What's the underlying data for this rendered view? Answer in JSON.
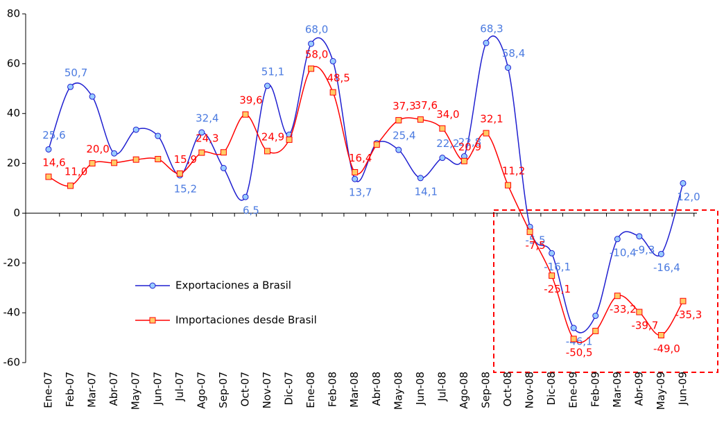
{
  "chart_data": {
    "type": "line",
    "categories": [
      "Ene-07",
      "Feb-07",
      "Mar-07",
      "Abr-07",
      "May-07",
      "Jun-07",
      "Jul-07",
      "Ago-07",
      "Sep-07",
      "Oct-07",
      "Nov-07",
      "Dic-07",
      "Ene-08",
      "Feb-08",
      "Mar-08",
      "Abr-08",
      "May-08",
      "Jun-08",
      "Jul-08",
      "Ago-08",
      "Sep-08",
      "Oct-08",
      "Nov-08",
      "Dic-08",
      "Ene-09",
      "Feb-09",
      "Mar-09",
      "Abr-09",
      "May-09",
      "Jun-09"
    ],
    "series": [
      {
        "name": "Exportaciones a Brasil",
        "color": "#1f1fd0",
        "marker_fill": "#99ccff",
        "label_color": "#4a7ae0",
        "values": [
          25.6,
          50.7,
          46.8,
          24.0,
          33.5,
          31.0,
          15.2,
          32.4,
          18.1,
          6.5,
          51.1,
          31.5,
          68.0,
          61.0,
          13.7,
          28.1,
          25.4,
          14.1,
          22.2,
          22.8,
          68.3,
          58.4,
          -5.5,
          -16.1,
          -46.1,
          -41.2,
          -10.4,
          -9.3,
          -16.4,
          12.0
        ],
        "value_labels": [
          "25,6",
          "50,7",
          null,
          null,
          null,
          null,
          "15,2",
          "32,4",
          null,
          "6,5",
          "51,1",
          null,
          "68,0",
          null,
          "13,7",
          null,
          "25,4",
          "14,1",
          "22,2",
          "22,8",
          "68,3",
          "58,4",
          "-5,5",
          "-16,1",
          "-46,1",
          null,
          "-10,4",
          "-9,3",
          "-16,4",
          "12,0"
        ]
      },
      {
        "name": "Importaciones desde Brasil",
        "color": "#ff0000",
        "marker_fill": "#ffcc66",
        "label_color": "#ff0000",
        "values": [
          14.6,
          11.0,
          20.0,
          20.2,
          21.5,
          21.7,
          15.9,
          24.3,
          24.4,
          39.6,
          24.9,
          29.5,
          58.0,
          48.5,
          16.4,
          27.5,
          37.3,
          37.6,
          34.0,
          20.9,
          32.1,
          11.2,
          -7.5,
          -25.1,
          -50.5,
          -47.3,
          -33.2,
          -39.7,
          -49.0,
          -35.3
        ],
        "value_labels": [
          "14,6",
          "11,0",
          "20,0",
          null,
          null,
          null,
          "15,9",
          "24,3",
          null,
          "39,6",
          "24,9",
          null,
          "58,0",
          "48,5",
          "16,4",
          null,
          "37,3",
          "37,6",
          "34,0",
          "20,9",
          "32,1",
          "11,2",
          "-7,5",
          "-25,1",
          "-50,5",
          null,
          "-33,2",
          "-39,7",
          "-49,0",
          "-35,3"
        ]
      }
    ],
    "ylim": [
      -60,
      80
    ],
    "yticks": [
      80,
      60,
      40,
      20,
      0,
      -20,
      -40,
      -60
    ]
  }
}
